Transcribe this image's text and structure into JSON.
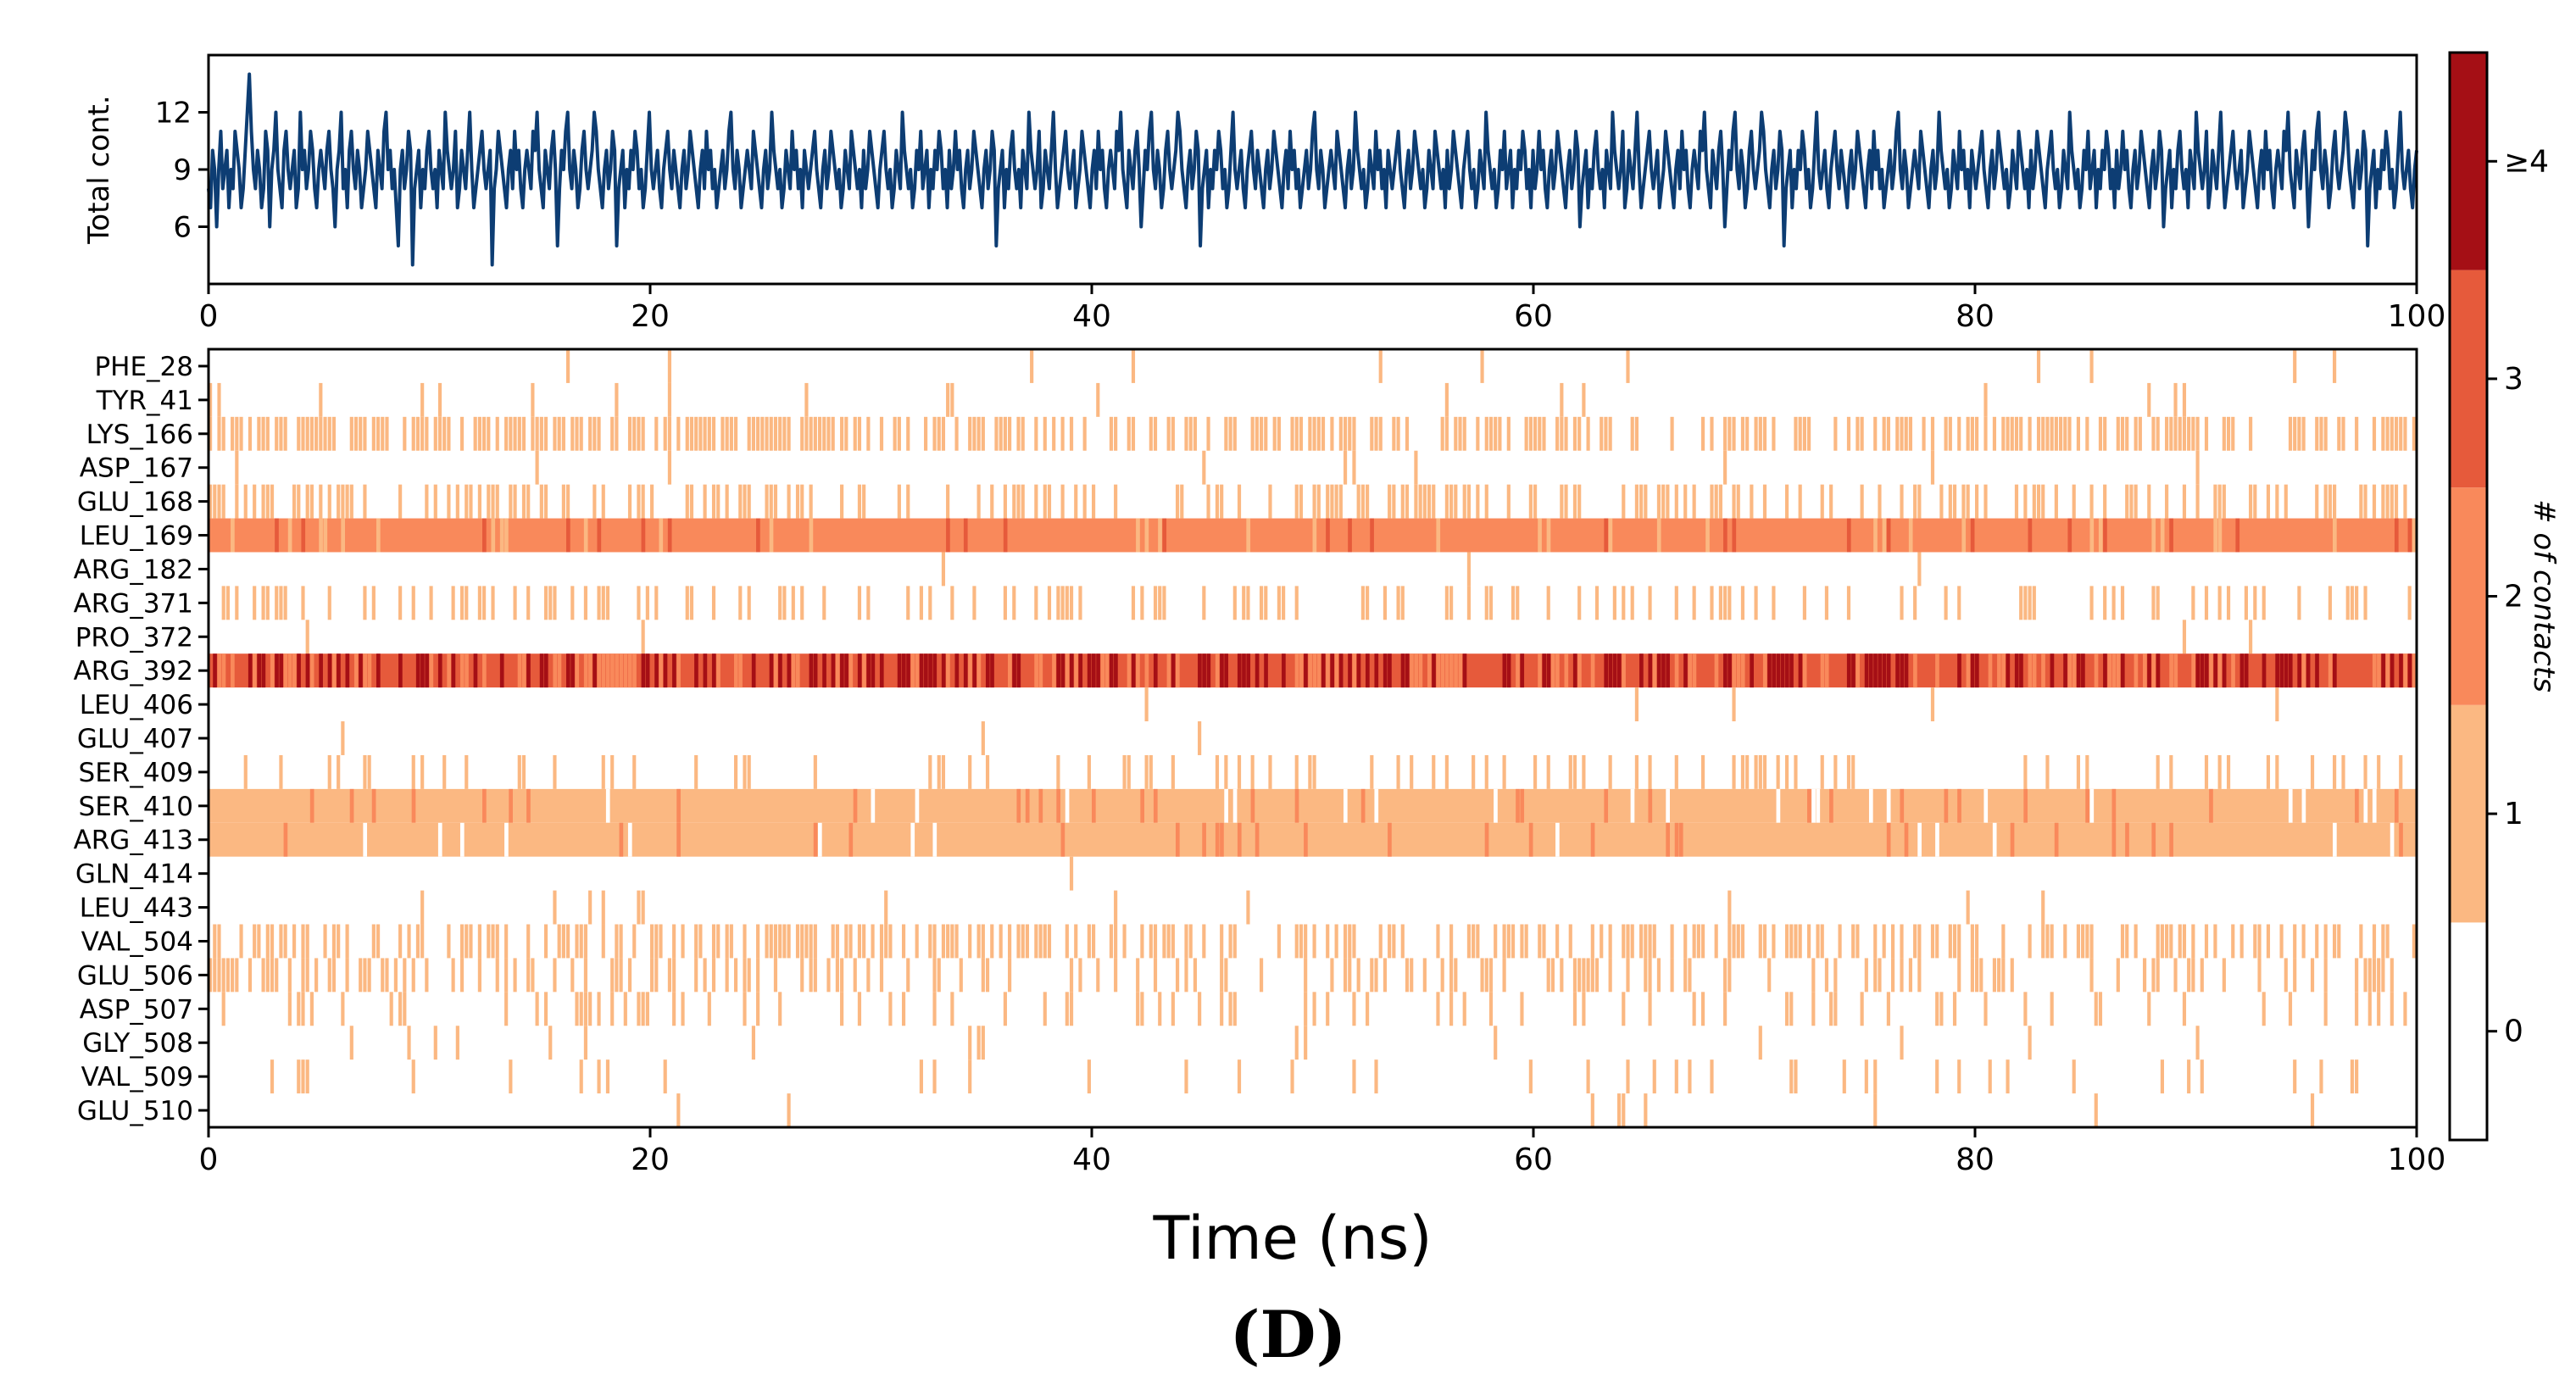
{
  "panel_label": "(D)",
  "chart_data": [
    {
      "type": "line",
      "name": "total-contacts",
      "ylabel": "Total cont.",
      "xlim": [
        0,
        100
      ],
      "ylim": [
        3,
        15
      ],
      "yticks": [
        6,
        9,
        12
      ],
      "xticks": [
        0,
        20,
        40,
        60,
        80,
        100
      ],
      "line_color": "#0d3d73",
      "series_stats": {
        "n_points": 1000,
        "mean": 8.6,
        "min": 4,
        "max": 14
      },
      "values": [
        8,
        7,
        10,
        9,
        6,
        9,
        11,
        8,
        9,
        10,
        7,
        9,
        8,
        11,
        10,
        9,
        7,
        8,
        10,
        12,
        14,
        11,
        9,
        8,
        10,
        9,
        7,
        8,
        11,
        10,
        6,
        9,
        10,
        12,
        9,
        8,
        7,
        10,
        11,
        9,
        8,
        9,
        10,
        7,
        8,
        12,
        9,
        10,
        8,
        9,
        11,
        10,
        8,
        7,
        9,
        10,
        9,
        8,
        10,
        11,
        9,
        8,
        6,
        9,
        10,
        12,
        8,
        9,
        7,
        10,
        11,
        9,
        8,
        10,
        9,
        7,
        8,
        9,
        11,
        10,
        9,
        8,
        7,
        10,
        9,
        8,
        11,
        12,
        9,
        10,
        8,
        9,
        7,
        5,
        9,
        10,
        8,
        9,
        11,
        10,
        4,
        8,
        9,
        10,
        7,
        9,
        8,
        10,
        11,
        9,
        8,
        9,
        7,
        10,
        9,
        8,
        12,
        10,
        9,
        8,
        9,
        11,
        7,
        8,
        10,
        9,
        8,
        10,
        12,
        9,
        7,
        8,
        9,
        10,
        11,
        9,
        8,
        9,
        10,
        4,
        8,
        9,
        11,
        10,
        9,
        8,
        7,
        9,
        10,
        8,
        11,
        9,
        10,
        8,
        7,
        9,
        10,
        9,
        8,
        11,
        10,
        12,
        9,
        8,
        7,
        10,
        9,
        8,
        10,
        11,
        9,
        5,
        8,
        10,
        9,
        11,
        12,
        9,
        8,
        10,
        9,
        7,
        8,
        10,
        11,
        9,
        8,
        9,
        10,
        12,
        11,
        9,
        8,
        7,
        9,
        10,
        8,
        9,
        11,
        10,
        5,
        8,
        9,
        10,
        7,
        9,
        8,
        10,
        9,
        11,
        10,
        8,
        9,
        7,
        8,
        10,
        12,
        9,
        8,
        9,
        10,
        8,
        7,
        9,
        10,
        11,
        9,
        8,
        10,
        9,
        8,
        7,
        9,
        10,
        8,
        9,
        11,
        10,
        9,
        8,
        7,
        9,
        10,
        8,
        11,
        9,
        10,
        8,
        9,
        7,
        8,
        9,
        10,
        8,
        9,
        11,
        12,
        9,
        8,
        10,
        9,
        7,
        8,
        9,
        10,
        9,
        8,
        11,
        10,
        9,
        8,
        7,
        9,
        10,
        8,
        9,
        12,
        10,
        9,
        8,
        9,
        7,
        8,
        10,
        9,
        8,
        11,
        9,
        10,
        8,
        9,
        7,
        10,
        9,
        8,
        9,
        10,
        11,
        9,
        8,
        7,
        9,
        10,
        8,
        9,
        11,
        10,
        9,
        8,
        9,
        7,
        8,
        10,
        9,
        8,
        11,
        10,
        9,
        8,
        9,
        7,
        10,
        8,
        9,
        11,
        10,
        9,
        8,
        7,
        9,
        10,
        11,
        9,
        8,
        9,
        7,
        8,
        10,
        9,
        8,
        12,
        10,
        9,
        8,
        9,
        7,
        8,
        10,
        9,
        11,
        8,
        9,
        10,
        7,
        9,
        8,
        10,
        9,
        11,
        10,
        8,
        9,
        7,
        10,
        8,
        9,
        11,
        9,
        10,
        8,
        7,
        9,
        10,
        8,
        9,
        11,
        10,
        9,
        8,
        7,
        9,
        10,
        8,
        9,
        11,
        10,
        5,
        8,
        9,
        10,
        7,
        9,
        8,
        10,
        11,
        9,
        8,
        9,
        7,
        10,
        9,
        8,
        12,
        10,
        9,
        8,
        9,
        11,
        7,
        8,
        10,
        9,
        8,
        10,
        12,
        9,
        7,
        8,
        9,
        10,
        11,
        9,
        8,
        9,
        10,
        7,
        8,
        9,
        11,
        10,
        9,
        8,
        7,
        9,
        10,
        8,
        11,
        9,
        10,
        8,
        7,
        9,
        10,
        9,
        8,
        11,
        10,
        12,
        9,
        8,
        7,
        10,
        9,
        8,
        10,
        11,
        9,
        6,
        8,
        10,
        9,
        11,
        12,
        9,
        8,
        10,
        9,
        7,
        8,
        10,
        11,
        9,
        8,
        9,
        10,
        12,
        11,
        9,
        8,
        7,
        9,
        10,
        8,
        9,
        11,
        10,
        5,
        8,
        9,
        10,
        7,
        9,
        8,
        10,
        9,
        11,
        10,
        8,
        9,
        7,
        8,
        10,
        12,
        9,
        8,
        9,
        10,
        8,
        7,
        9,
        10,
        11,
        9,
        8,
        10,
        9,
        8,
        7,
        9,
        10,
        8,
        9,
        11,
        10,
        9,
        8,
        7,
        9,
        10,
        8,
        11,
        9,
        10,
        8,
        9,
        7,
        8,
        9,
        10,
        8,
        9,
        11,
        12,
        9,
        8,
        10,
        9,
        7,
        8,
        9,
        10,
        9,
        8,
        11,
        10,
        9,
        8,
        7,
        9,
        10,
        8,
        9,
        12,
        10,
        9,
        8,
        9,
        7,
        8,
        10,
        9,
        8,
        11,
        9,
        10,
        8,
        9,
        7,
        10,
        9,
        8,
        9,
        10,
        11,
        9,
        8,
        7,
        9,
        10,
        8,
        9,
        11,
        10,
        9,
        8,
        9,
        7,
        8,
        10,
        9,
        8,
        11,
        10,
        9,
        8,
        9,
        7,
        10,
        8,
        9,
        11,
        10,
        9,
        8,
        7,
        9,
        10,
        11,
        9,
        8,
        9,
        7,
        8,
        10,
        9,
        8,
        12,
        10,
        9,
        8,
        9,
        7,
        8,
        10,
        9,
        11,
        8,
        9,
        10,
        7,
        9,
        8,
        10,
        9,
        11,
        10,
        8,
        9,
        7,
        10,
        8,
        9,
        11,
        9,
        10,
        8,
        7,
        9,
        10,
        8,
        9,
        11,
        10,
        9,
        8,
        7,
        9,
        10,
        8,
        9,
        11,
        10,
        6,
        8,
        9,
        10,
        7,
        9,
        8,
        10,
        11,
        9,
        8,
        9,
        7,
        10,
        9,
        8,
        12,
        10,
        9,
        8,
        9,
        11,
        7,
        8,
        10,
        9,
        8,
        10,
        12,
        9,
        7,
        8,
        9,
        10,
        11,
        9,
        8,
        9,
        10,
        7,
        8,
        9,
        11,
        10,
        9,
        8,
        7,
        9,
        10,
        8,
        11,
        9,
        10,
        8,
        7,
        9,
        10,
        9,
        8,
        11,
        10,
        12,
        9,
        8,
        7,
        10,
        9,
        8,
        10,
        11,
        9,
        6,
        8,
        10,
        9,
        11,
        12,
        9,
        8,
        10,
        9,
        7,
        8,
        10,
        11,
        9,
        8,
        9,
        10,
        12,
        11,
        9,
        8,
        7,
        9,
        10,
        8,
        9,
        11,
        10,
        5,
        8,
        9,
        10,
        7,
        9,
        8,
        10,
        9,
        11,
        10,
        8,
        9,
        7,
        8,
        10,
        12,
        9,
        8,
        9,
        10,
        8,
        7,
        9,
        10,
        11,
        9,
        8,
        10,
        9,
        8,
        7,
        9,
        10,
        8,
        9,
        11,
        10,
        9,
        8,
        7,
        9,
        10,
        8,
        11,
        9,
        10,
        8,
        9,
        7,
        8,
        9,
        10,
        8,
        9,
        11,
        12,
        9,
        8,
        10,
        9,
        7,
        8,
        9,
        10,
        9,
        8,
        11,
        10,
        9,
        8,
        7,
        9,
        10,
        8,
        9,
        12,
        10,
        9,
        8,
        9,
        7,
        8,
        10,
        9,
        8,
        11,
        9,
        10,
        8,
        9,
        7,
        10,
        9,
        8,
        9,
        10,
        11,
        9,
        8,
        7,
        9,
        10,
        8,
        9,
        11,
        10,
        9,
        8,
        9,
        7,
        8,
        10,
        9,
        8,
        11,
        10,
        9,
        8,
        9,
        7,
        10,
        8,
        9,
        11,
        10,
        9,
        8,
        7,
        9,
        10,
        11,
        9,
        8,
        9,
        7,
        8,
        10,
        9,
        8,
        12,
        10,
        9,
        8,
        9,
        7,
        8,
        10,
        9,
        11,
        8,
        9,
        10,
        7,
        9,
        8,
        10,
        9,
        11,
        10,
        8,
        9,
        7,
        10,
        8,
        9,
        11,
        9,
        10,
        8,
        7,
        9,
        10,
        8,
        9,
        11,
        10,
        9,
        8,
        7,
        9,
        10,
        8,
        9,
        11,
        10,
        6,
        8,
        9,
        10,
        7,
        9,
        8,
        10,
        11,
        9,
        8,
        9,
        7,
        10,
        9,
        8,
        12,
        10,
        9,
        8,
        9,
        11,
        7,
        8,
        10,
        9,
        8,
        10,
        12,
        9,
        7,
        8,
        9,
        10,
        11,
        9,
        8,
        9,
        10,
        7,
        8,
        9,
        11,
        10,
        9,
        8,
        7,
        9,
        10,
        8,
        11,
        9,
        10,
        8,
        7,
        9,
        10,
        9,
        8,
        11,
        10,
        12,
        9,
        8,
        7,
        10,
        9,
        8,
        10,
        11,
        9,
        6,
        8,
        10,
        9,
        11,
        12,
        9,
        8,
        10,
        9,
        7,
        8,
        10,
        11,
        9,
        8,
        9,
        10,
        12,
        11,
        9,
        8,
        7,
        9,
        10,
        8,
        9,
        11,
        10,
        5,
        8,
        9,
        10,
        7,
        9,
        8,
        10,
        9,
        11,
        10,
        8,
        9,
        7,
        8,
        10,
        12,
        9,
        8,
        9,
        10,
        8,
        7,
        9,
        10
      ]
    },
    {
      "type": "heatmap",
      "name": "residue-contacts",
      "xlabel": "Time (ns)",
      "xlim": [
        0,
        100
      ],
      "xticks": [
        0,
        20,
        40,
        60,
        80,
        100
      ],
      "n_frames": 500,
      "rows": [
        {
          "label": "PHE_28",
          "density": 0.015,
          "level": 1
        },
        {
          "label": "TYR_41",
          "density": 0.04,
          "level": 1
        },
        {
          "label": "LYS_166",
          "density": 0.6,
          "level": 1
        },
        {
          "label": "ASP_167",
          "density": 0.015,
          "level": 1
        },
        {
          "label": "GLU_168",
          "density": 0.35,
          "level": 1
        },
        {
          "label": "LEU_169",
          "density": 1.0,
          "level": 2
        },
        {
          "label": "ARG_182",
          "density": 0.005,
          "level": 1
        },
        {
          "label": "ARG_371",
          "density": 0.25,
          "level": 1
        },
        {
          "label": "PRO_372",
          "density": 0.008,
          "level": 1
        },
        {
          "label": "ARG_392",
          "density": 1.0,
          "level": 3
        },
        {
          "label": "LEU_406",
          "density": 0.01,
          "level": 1
        },
        {
          "label": "GLU_407",
          "density": 0.005,
          "level": 1
        },
        {
          "label": "SER_409",
          "density": 0.15,
          "level": 1
        },
        {
          "label": "SER_410",
          "density": 1.0,
          "level": 1
        },
        {
          "label": "ARG_413",
          "density": 1.0,
          "level": 1
        },
        {
          "label": "GLN_414",
          "density": 0.003,
          "level": 1
        },
        {
          "label": "LEU_443",
          "density": 0.03,
          "level": 1
        },
        {
          "label": "VAL_504",
          "density": 0.45,
          "level": 1
        },
        {
          "label": "GLU_506",
          "density": 0.3,
          "level": 1
        },
        {
          "label": "ASP_507",
          "density": 0.15,
          "level": 1
        },
        {
          "label": "GLY_508",
          "density": 0.04,
          "level": 1
        },
        {
          "label": "VAL_509",
          "density": 0.07,
          "level": 1
        },
        {
          "label": "GLU_510",
          "density": 0.015,
          "level": 1
        }
      ]
    },
    {
      "type": "colorbar",
      "name": "contacts-colorbar",
      "label": "# of contacts",
      "tick_labels": [
        "0",
        "1",
        "2",
        "3",
        "≥4"
      ],
      "colors": [
        "#ffffff",
        "#fbb882",
        "#f9895b",
        "#e65a3b",
        "#a50f15"
      ]
    }
  ]
}
